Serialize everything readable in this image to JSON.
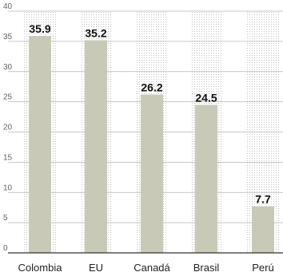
{
  "chart_data": {
    "type": "bar",
    "title": "",
    "xlabel": "",
    "ylabel": "",
    "categories": [
      "Colombia",
      "EU",
      "Canadá",
      "Brasil",
      "Perú"
    ],
    "values": [
      35.9,
      35.2,
      26.2,
      24.5,
      7.7
    ],
    "value_labels": [
      "35.9",
      "35.2",
      "26.2",
      "24.5",
      "7.7"
    ],
    "ylim": [
      0,
      40
    ],
    "yticks": [
      "0",
      "5",
      "10",
      "15",
      "20",
      "25",
      "30",
      "35",
      "40"
    ],
    "grid": true,
    "bar_color": "#c9c9b8",
    "stipple_color": "#bdbdbd"
  }
}
